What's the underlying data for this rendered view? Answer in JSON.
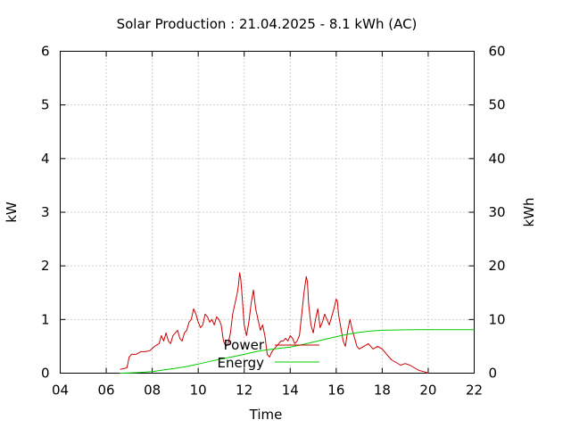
{
  "chart_data": {
    "type": "line",
    "title": "Solar Production : 21.04.2025 - 8.1 kWh (AC)",
    "xlabel": "Time",
    "ylabel": "kW",
    "y2label": "kWh",
    "xlim": [
      4,
      22
    ],
    "ylim": [
      0,
      6
    ],
    "y2lim": [
      0,
      60
    ],
    "x_ticks": [
      "04",
      "06",
      "08",
      "10",
      "12",
      "14",
      "16",
      "18",
      "20",
      "22"
    ],
    "y_ticks": [
      "0",
      "1",
      "2",
      "3",
      "4",
      "5",
      "6"
    ],
    "y2_ticks": [
      "0",
      "10",
      "20",
      "30",
      "40",
      "50",
      "60"
    ],
    "grid": true,
    "legend_position": "inside-bottom-center",
    "series": [
      {
        "name": "Power",
        "axis": "y",
        "color": "#cc0000",
        "x": [
          6.6,
          6.9,
          7.0,
          7.1,
          7.3,
          7.5,
          7.7,
          7.9,
          8.1,
          8.3,
          8.4,
          8.5,
          8.6,
          8.7,
          8.8,
          8.9,
          9.0,
          9.1,
          9.2,
          9.3,
          9.4,
          9.5,
          9.6,
          9.7,
          9.8,
          9.9,
          10.0,
          10.1,
          10.2,
          10.3,
          10.4,
          10.5,
          10.6,
          10.7,
          10.8,
          10.9,
          11.0,
          11.1,
          11.2,
          11.3,
          11.4,
          11.5,
          11.6,
          11.7,
          11.75,
          11.8,
          11.85,
          11.9,
          12.0,
          12.1,
          12.2,
          12.3,
          12.4,
          12.5,
          12.6,
          12.7,
          12.8,
          12.9,
          13.0,
          13.1,
          13.2,
          13.3,
          13.4,
          13.5,
          13.6,
          13.7,
          13.8,
          13.9,
          14.0,
          14.1,
          14.2,
          14.3,
          14.4,
          14.5,
          14.6,
          14.7,
          14.75,
          14.8,
          14.9,
          15.0,
          15.1,
          15.2,
          15.3,
          15.4,
          15.5,
          15.6,
          15.7,
          15.8,
          15.9,
          16.0,
          16.05,
          16.1,
          16.2,
          16.3,
          16.4,
          16.5,
          16.6,
          16.7,
          16.8,
          16.9,
          17.0,
          17.2,
          17.4,
          17.6,
          17.8,
          18.0,
          18.2,
          18.4,
          18.6,
          18.8,
          19.0,
          19.2,
          19.4,
          19.6,
          19.8,
          20.0
        ],
        "values": [
          0.07,
          0.1,
          0.3,
          0.35,
          0.35,
          0.4,
          0.4,
          0.42,
          0.5,
          0.55,
          0.7,
          0.6,
          0.75,
          0.6,
          0.55,
          0.7,
          0.75,
          0.8,
          0.65,
          0.6,
          0.75,
          0.8,
          0.95,
          1.0,
          1.2,
          1.1,
          0.95,
          0.85,
          0.9,
          1.1,
          1.05,
          0.95,
          1.0,
          0.9,
          1.05,
          1.0,
          0.9,
          0.6,
          0.5,
          0.55,
          0.75,
          1.1,
          1.3,
          1.5,
          1.65,
          1.87,
          1.75,
          1.5,
          0.9,
          0.7,
          0.95,
          1.3,
          1.55,
          1.2,
          1.0,
          0.8,
          0.9,
          0.7,
          0.35,
          0.3,
          0.4,
          0.45,
          0.5,
          0.55,
          0.6,
          0.6,
          0.65,
          0.6,
          0.7,
          0.65,
          0.55,
          0.6,
          0.7,
          1.1,
          1.5,
          1.8,
          1.7,
          1.3,
          0.9,
          0.75,
          1.0,
          1.2,
          0.85,
          0.95,
          1.1,
          1.0,
          0.9,
          1.05,
          1.2,
          1.38,
          1.35,
          1.1,
          0.85,
          0.6,
          0.5,
          0.8,
          1.0,
          0.8,
          0.65,
          0.5,
          0.45,
          0.5,
          0.55,
          0.45,
          0.5,
          0.45,
          0.35,
          0.25,
          0.2,
          0.15,
          0.18,
          0.15,
          0.1,
          0.05,
          0.03,
          0.0
        ]
      },
      {
        "name": "Energy",
        "axis": "y2",
        "color": "#00cc00",
        "x": [
          6.6,
          7.0,
          7.5,
          8.0,
          8.5,
          9.0,
          9.5,
          10.0,
          10.5,
          11.0,
          11.5,
          12.0,
          12.5,
          13.0,
          13.5,
          14.0,
          14.5,
          15.0,
          15.5,
          16.0,
          16.5,
          17.0,
          17.5,
          18.0,
          18.5,
          19.0,
          19.5,
          20.0,
          21.0,
          22.0
        ],
        "values": [
          0.0,
          0.05,
          0.15,
          0.3,
          0.6,
          0.9,
          1.25,
          1.7,
          2.2,
          2.65,
          3.05,
          3.5,
          4.0,
          4.35,
          4.6,
          4.85,
          5.3,
          5.8,
          6.3,
          6.8,
          7.25,
          7.6,
          7.85,
          8.0,
          8.05,
          8.08,
          8.1,
          8.1,
          8.1,
          8.1
        ]
      }
    ]
  }
}
